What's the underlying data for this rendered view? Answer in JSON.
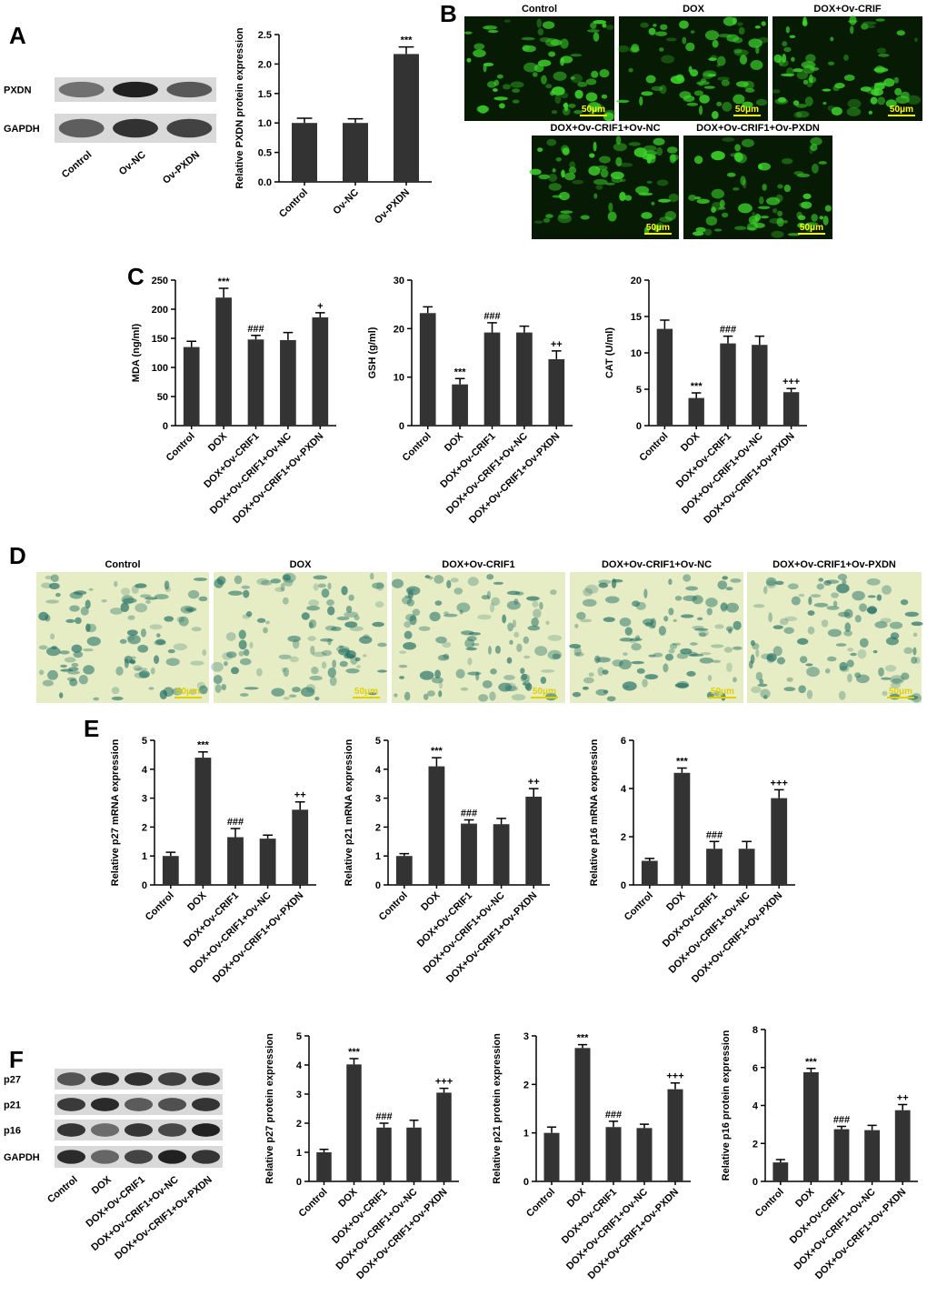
{
  "panel_labels": [
    "A",
    "B",
    "C",
    "D",
    "E",
    "F"
  ],
  "blot_A": {
    "rows": [
      "PXDN",
      "GAPDH"
    ],
    "lanes": [
      "Control",
      "Ov-NC",
      "Ov-PXDN"
    ]
  },
  "micro_B": {
    "titles": [
      "Control",
      "DOX",
      "DOX+Ov-CRIF",
      "DOX+Ov-CRIF1+Ov-NC",
      "DOX+Ov-CRIF1+Ov-PXDN"
    ],
    "scale_bar": "50μm"
  },
  "micro_D": {
    "titles": [
      "Control",
      "DOX",
      "DOX+Ov-CRIF1",
      "DOX+Ov-CRIF1+Ov-NC",
      "DOX+Ov-CRIF1+Ov-PXDN"
    ],
    "scale_bar": "50μm"
  },
  "blot_F": {
    "rows": [
      "p27",
      "p21",
      "p16",
      "GAPDH"
    ],
    "lanes": [
      "Control",
      "DOX",
      "DOX+Ov-CRIF1",
      "DOX+Ov-CRIF1+Ov-NC",
      "DOX+Ov-CRIF1+Ov-PXDN"
    ]
  },
  "chart_data": [
    {
      "type": "bar",
      "ylabel": "Relative PXDN protein expression",
      "color": "#333333",
      "categories": [
        "Control",
        "Ov-NC",
        "Ov-PXDN"
      ],
      "values": [
        1.0,
        1.0,
        2.17
      ],
      "errors": [
        0.08,
        0.07,
        0.12
      ],
      "annotations": [
        null,
        null,
        "***"
      ],
      "ylim": [
        0,
        2.5
      ],
      "yticks": [
        {
          "value": 0,
          "label": "0.0"
        },
        0.5,
        {
          "value": 1,
          "label": "1.0"
        },
        1.5,
        {
          "value": 2,
          "label": "2.0"
        },
        2.5
      ]
    },
    {
      "type": "bar",
      "ylabel": "MDA (ng/ml)",
      "color": "#333333",
      "categories": [
        "Control",
        "DOX",
        "DOX+Ov-CRIF1",
        "DOX+Ov-CRIF1+Ov-NC",
        "DOX+Ov-CRIF1+Ov-PXDN"
      ],
      "values": [
        135,
        220,
        148,
        147,
        186
      ],
      "errors": [
        10,
        16,
        7,
        13,
        8
      ],
      "annotations": [
        null,
        "***",
        "###",
        null,
        "+"
      ],
      "ylim": [
        0,
        250
      ],
      "yticks": [
        0,
        50,
        100,
        150,
        200,
        250
      ]
    },
    {
      "type": "bar",
      "ylabel": "GSH (g/ml)",
      "color": "#333333",
      "categories": [
        "Control",
        "DOX",
        "DOX+Ov-CRIF1",
        "DOX+Ov-CRIF1+Ov-NC",
        "DOX+Ov-CRIF1+Ov-PXDN"
      ],
      "values": [
        23.2,
        8.5,
        19.2,
        19.2,
        13.7
      ],
      "errors": [
        1.3,
        1.2,
        2.0,
        1.3,
        1.7
      ],
      "annotations": [
        null,
        "***",
        "###",
        null,
        "++"
      ],
      "ylim": [
        0,
        30
      ],
      "yticks": [
        0,
        10,
        20,
        30
      ]
    },
    {
      "type": "bar",
      "ylabel": "CAT (U/ml)",
      "color": "#333333",
      "categories": [
        "Control",
        "DOX",
        "DOX+Ov-CRIF1",
        "DOX+Ov-CRIF1+Ov-NC",
        "DOX+Ov-CRIF1+Ov-PXDN"
      ],
      "values": [
        13.3,
        3.8,
        11.3,
        11.1,
        4.6
      ],
      "errors": [
        1.2,
        0.7,
        1.0,
        1.2,
        0.5
      ],
      "annotations": [
        null,
        "***",
        "###",
        null,
        "+++"
      ],
      "ylim": [
        0,
        20
      ],
      "yticks": [
        0,
        5,
        10,
        15,
        20
      ]
    },
    {
      "type": "bar",
      "ylabel": "Relative p27 mRNA expression",
      "color": "#333333",
      "categories": [
        "Control",
        "DOX",
        "DOX+Ov-CRIF1",
        "DOX+Ov-CRIF1+Ov-NC",
        "DOX+Ov-CRIF1+Ov-PXDN"
      ],
      "values": [
        1.0,
        4.4,
        1.65,
        1.6,
        2.6
      ],
      "errors": [
        0.13,
        0.2,
        0.3,
        0.12,
        0.27
      ],
      "annotations": [
        null,
        "***",
        "###",
        null,
        "++"
      ],
      "ylim": [
        0,
        5
      ],
      "yticks": [
        0,
        1,
        2,
        3,
        4,
        5
      ]
    },
    {
      "type": "bar",
      "ylabel": "Relative p21 mRNA expression",
      "color": "#333333",
      "categories": [
        "Control",
        "DOX",
        "DOX+Ov-CRIF1",
        "DOX+Ov-CRIF1+Ov-NC",
        "DOX+Ov-CRIF1+Ov-PXDN"
      ],
      "values": [
        1.0,
        4.1,
        2.12,
        2.1,
        3.05
      ],
      "errors": [
        0.08,
        0.3,
        0.13,
        0.2,
        0.28
      ],
      "annotations": [
        null,
        "***",
        "###",
        null,
        "++"
      ],
      "ylim": [
        0,
        5
      ],
      "yticks": [
        0,
        1,
        2,
        3,
        4,
        5
      ]
    },
    {
      "type": "bar",
      "ylabel": "Relative p16 mRNA expression",
      "color": "#333333",
      "categories": [
        "Control",
        "DOX",
        "DOX+Ov-CRIF1",
        "DOX+Ov-CRIF1+Ov-NC",
        "DOX+Ov-CRIF1+Ov-PXDN"
      ],
      "values": [
        1.0,
        4.65,
        1.5,
        1.5,
        3.6
      ],
      "errors": [
        0.1,
        0.2,
        0.3,
        0.3,
        0.35
      ],
      "annotations": [
        null,
        "***",
        "###",
        null,
        "+++"
      ],
      "ylim": [
        0,
        6
      ],
      "yticks": [
        0,
        2,
        4,
        6
      ]
    },
    {
      "type": "bar",
      "ylabel": "Relative p27 protein expression",
      "color": "#333333",
      "categories": [
        "Control",
        "DOX",
        "DOX+Ov-CRIF1",
        "DOX+Ov-CRIF1+Ov-NC",
        "DOX+Ov-CRIF1+Ov-PXDN"
      ],
      "values": [
        1.0,
        4.02,
        1.85,
        1.85,
        3.05
      ],
      "errors": [
        0.1,
        0.2,
        0.15,
        0.25,
        0.15
      ],
      "annotations": [
        null,
        "***",
        "###",
        null,
        "+++"
      ],
      "ylim": [
        0,
        5
      ],
      "yticks": [
        0,
        1,
        2,
        3,
        4,
        5
      ]
    },
    {
      "type": "bar",
      "ylabel": "Relative p21 protein expression",
      "color": "#333333",
      "categories": [
        "Control",
        "DOX",
        "DOX+Ov-CRIF1",
        "DOX+Ov-CRIF1+Ov-NC",
        "DOX+Ov-CRIF1+Ov-PXDN"
      ],
      "values": [
        1.0,
        2.75,
        1.12,
        1.1,
        1.9
      ],
      "errors": [
        0.12,
        0.07,
        0.12,
        0.08,
        0.13
      ],
      "annotations": [
        null,
        "***",
        "###",
        null,
        "+++"
      ],
      "ylim": [
        0,
        3
      ],
      "yticks": [
        0,
        1,
        2,
        3
      ]
    },
    {
      "type": "bar",
      "ylabel": "Relative p16 protein expression",
      "color": "#333333",
      "categories": [
        "Control",
        "DOX",
        "DOX+Ov-CRIF1",
        "DOX+Ov-CRIF1+Ov-NC",
        "DOX+Ov-CRIF1+Ov-PXDN"
      ],
      "values": [
        1.0,
        5.75,
        2.75,
        2.7,
        3.75
      ],
      "errors": [
        0.15,
        0.2,
        0.15,
        0.25,
        0.3
      ],
      "annotations": [
        null,
        "***",
        "###",
        null,
        "++"
      ],
      "ylim": [
        0,
        8
      ],
      "yticks": [
        0,
        2,
        4,
        6,
        8
      ]
    }
  ]
}
